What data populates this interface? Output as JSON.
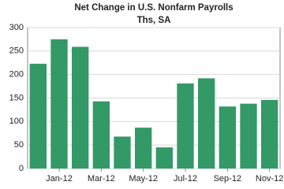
{
  "chart_data": {
    "type": "bar",
    "title": "Net Change in U.S. Nonfarm Payrolls",
    "subtitle": "Ths, SA",
    "categories": [
      null,
      "Jan-12",
      null,
      "Mar-12",
      null,
      "May-12",
      null,
      "Jul-12",
      null,
      "Sep-12",
      null,
      "Nov-12"
    ],
    "values": [
      223,
      275,
      259,
      143,
      68,
      87,
      45,
      181,
      192,
      132,
      138,
      146
    ],
    "color": "#339966",
    "ylim": [
      0,
      300
    ],
    "yticks": [
      0,
      50,
      100,
      150,
      200,
      250,
      300
    ],
    "grid": true
  }
}
